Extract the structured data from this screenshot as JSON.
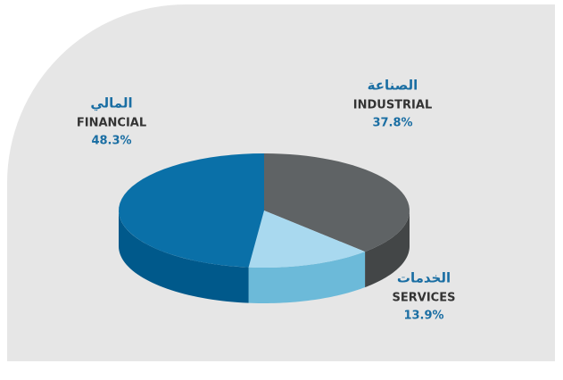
{
  "chart_data": {
    "type": "pie",
    "categories": [
      "FINANCIAL",
      "INDUSTRIAL",
      "SERVICES"
    ],
    "categories_arabic": [
      "المالي",
      "الصناعة",
      "الخدمات"
    ],
    "values": [
      48.3,
      37.8,
      13.9
    ],
    "value_labels": [
      "48.3%",
      "37.8%",
      "13.9%"
    ],
    "colors": [
      "#0a70a8",
      "#5f6365",
      "#a9d9ef"
    ],
    "side_colors": [
      "#00598b",
      "#434647",
      "#6cbad9"
    ]
  }
}
